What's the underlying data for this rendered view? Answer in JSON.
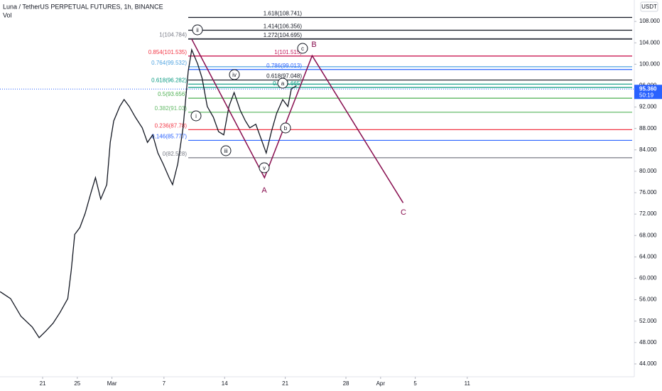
{
  "chart_data": {
    "type": "line",
    "title": "Luna / TetherUS PERPETUAL FUTURES, 1h, BINANCE",
    "subtitle": "Vol",
    "currency": "USDT",
    "last_price": {
      "value": 95.36,
      "label": "95.360"
    },
    "countdown": "50:19",
    "xlim": [
      -4.92,
      68.03
    ],
    "ylim": [
      41.6,
      112
    ],
    "xticks": [
      {
        "value": 0,
        "label": "21"
      },
      {
        "value": 4,
        "label": "25"
      },
      {
        "value": 8,
        "label": "Mar"
      },
      {
        "value": 14,
        "label": "7"
      },
      {
        "value": 21,
        "label": "14"
      },
      {
        "value": 28,
        "label": "21"
      },
      {
        "value": 35,
        "label": "28"
      },
      {
        "value": 39,
        "label": "Apr"
      },
      {
        "value": 43,
        "label": "5"
      },
      {
        "value": 49,
        "label": "11"
      }
    ],
    "yticks": [
      {
        "value": 108,
        "label": "108.000"
      },
      {
        "value": 104,
        "label": "104.000"
      },
      {
        "value": 100,
        "label": "100.000"
      },
      {
        "value": 96,
        "label": "96.000"
      },
      {
        "value": 92,
        "label": "92.000"
      },
      {
        "value": 88,
        "label": "88.000"
      },
      {
        "value": 84,
        "label": "84.000"
      },
      {
        "value": 80,
        "label": "80.000"
      },
      {
        "value": 76,
        "label": "76.000"
      },
      {
        "value": 72,
        "label": "72.000"
      },
      {
        "value": 68,
        "label": "68.000"
      },
      {
        "value": 64,
        "label": "64.000"
      },
      {
        "value": 60,
        "label": "60.000"
      },
      {
        "value": 56,
        "label": "56.000"
      },
      {
        "value": 52,
        "label": "52.000"
      },
      {
        "value": 48,
        "label": "48.000"
      },
      {
        "value": 44,
        "label": "44.000"
      }
    ],
    "series": [
      {
        "name": "Luna / TetherUS",
        "color": "#131722",
        "x": [
          -4.9,
          -3.7,
          -2.5,
          -1.2,
          -0.4,
          0.4,
          1.2,
          2.0,
          2.9,
          3.3,
          3.7,
          4.3,
          4.9,
          5.6,
          6.1,
          6.7,
          7.4,
          7.8,
          8.2,
          8.9,
          9.4,
          10.0,
          10.7,
          11.5,
          12.1,
          12.7,
          13.3,
          13.9,
          14.6,
          15.0,
          15.6,
          16.2,
          16.8,
          17.2,
          17.9,
          18.4,
          19.0,
          19.7,
          20.3,
          20.9,
          21.5,
          22.1,
          22.8,
          23.4,
          23.9,
          24.6,
          25.2,
          25.8,
          26.4,
          27.0,
          27.7,
          28.3,
          28.7,
          29.3
        ],
        "values": [
          57.5,
          56.2,
          52.9,
          50.9,
          48.9,
          50.2,
          51.6,
          53.6,
          56.2,
          61.5,
          68.2,
          69.5,
          72.1,
          76.1,
          78.8,
          74.8,
          77.5,
          85.4,
          89.4,
          92.1,
          93.4,
          92.1,
          90.1,
          88.1,
          85.4,
          86.8,
          83.4,
          81.4,
          78.8,
          77.5,
          81.4,
          88.1,
          98.7,
          102.7,
          100.0,
          97.4,
          92.1,
          90.1,
          87.4,
          86.8,
          92.1,
          94.7,
          91.4,
          89.4,
          88.1,
          88.8,
          86.1,
          83.4,
          87.4,
          90.8,
          93.4,
          92.1,
          95.4,
          96.0
        ]
      }
    ],
    "fib_retracement": [
      {
        "label": "1(104.784)",
        "value": 104.784,
        "color": "#787b86"
      },
      {
        "label": "0.854(101.535)",
        "value": 101.535,
        "color": "#f23645"
      },
      {
        "label": "0.764(99.532)",
        "value": 99.532,
        "color": "#4fa3e0"
      },
      {
        "label": "0.618(96.282)",
        "value": 96.282,
        "color": "#089981"
      },
      {
        "label": "0.5(93.656)",
        "value": 93.656,
        "color": "#4caf50"
      },
      {
        "label": "0.382(91.03)",
        "value": 91.03,
        "color": "#66bb6a"
      },
      {
        "label": "0.236(87.78)",
        "value": 87.78,
        "color": "#f23645"
      },
      {
        "label": "0.146(85.777)",
        "value": 85.777,
        "color": "#2962ff"
      },
      {
        "label": "0(82.528)",
        "value": 82.528,
        "color": "#787b86"
      }
    ],
    "fib_extension": [
      {
        "label": "1.618(108.741)",
        "value": 108.741,
        "color": "#131722"
      },
      {
        "label": "1.414(106.356)",
        "value": 106.356,
        "color": "#131722"
      },
      {
        "label": "1.272(104.695)",
        "value": 104.695,
        "color": "#131722"
      },
      {
        "label": "1(101.515)",
        "value": 101.515,
        "color": "#c2185b"
      },
      {
        "label": "0.786(99.013)",
        "value": 99.013,
        "color": "#2962ff"
      },
      {
        "label": "0.618(97.048)",
        "value": 97.048,
        "color": "#131722"
      },
      {
        "label": "0.5(95.665)",
        "value": 95.665,
        "color": "#089981"
      }
    ],
    "projection": {
      "color": "#880e4f",
      "x": [
        17.2,
        25.6,
        31.1,
        41.6
      ],
      "values": [
        104.7,
        78.8,
        101.6,
        74.1
      ]
    },
    "waves": [
      "ii",
      "i",
      "iii",
      "iv",
      "v",
      "a",
      "b",
      "c",
      "A",
      "B",
      "C"
    ]
  }
}
